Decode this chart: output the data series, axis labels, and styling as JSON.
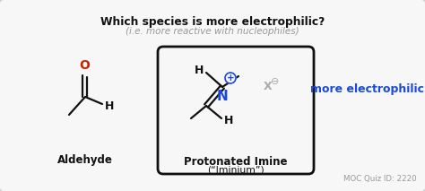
{
  "bg_color": "#f7f7f7",
  "title_text": "Which species is more electrophilic?",
  "subtitle_text": "(i.e. more reactive with nucleophiles)",
  "title_color": "#111111",
  "subtitle_color": "#999999",
  "aldehyde_label": "Aldehyde",
  "imine_label": "Protonated Imine",
  "imine_sublabel": "(“Iminium”)",
  "more_electrophilic_text": "more electrophilic",
  "more_electrophilic_color": "#1a4adb",
  "quiz_text": "MOC Quiz ID: 2220",
  "quiz_color": "#999999",
  "box_color": "#111111",
  "outer_box_color": "#cccccc",
  "oxygen_color": "#cc2200",
  "nitrogen_color": "#1a4adb",
  "carbon_color": "#111111",
  "gray_color": "#aaaaaa",
  "bond_lw": 1.6,
  "figw": 4.74,
  "figh": 2.13,
  "dpi": 100
}
